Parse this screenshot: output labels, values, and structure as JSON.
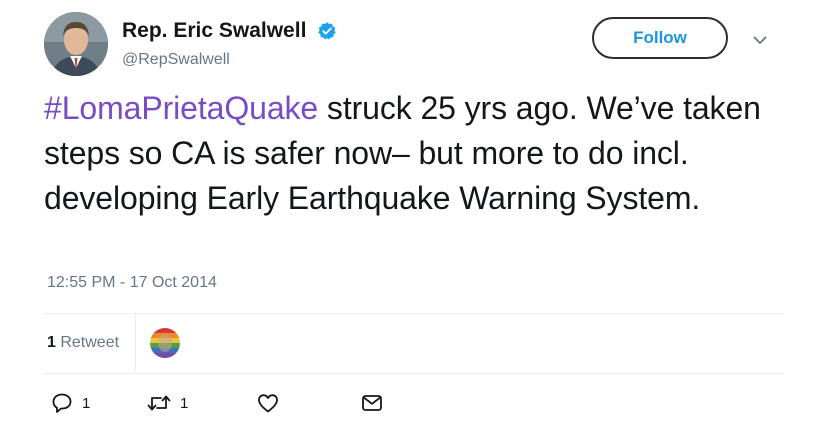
{
  "author": {
    "display_name": "Rep. Eric Swalwell",
    "handle": "@RepSwalwell",
    "verified": true
  },
  "header": {
    "follow_label": "Follow"
  },
  "tweet": {
    "hashtag": "#LomaPrietaQuake",
    "body": " struck 25 yrs ago. We’ve taken steps so CA is safer now– but more to do incl. developing Early Earthquake Warning System.",
    "timestamp": "12:55 PM - 17 Oct 2014"
  },
  "stats": {
    "retweet_count": "1",
    "retweet_label": " Retweet"
  },
  "actions": {
    "reply_count": "1",
    "retweet_count": "1",
    "icons": [
      "reply-icon",
      "retweet-icon",
      "like-icon",
      "direct-message-icon"
    ]
  },
  "colors": {
    "hashtag": "#794bc4",
    "follow_text": "#1b95e0",
    "verified": "#1da1f2",
    "secondary_text": "#657786",
    "divider": "#e6ecf0"
  }
}
